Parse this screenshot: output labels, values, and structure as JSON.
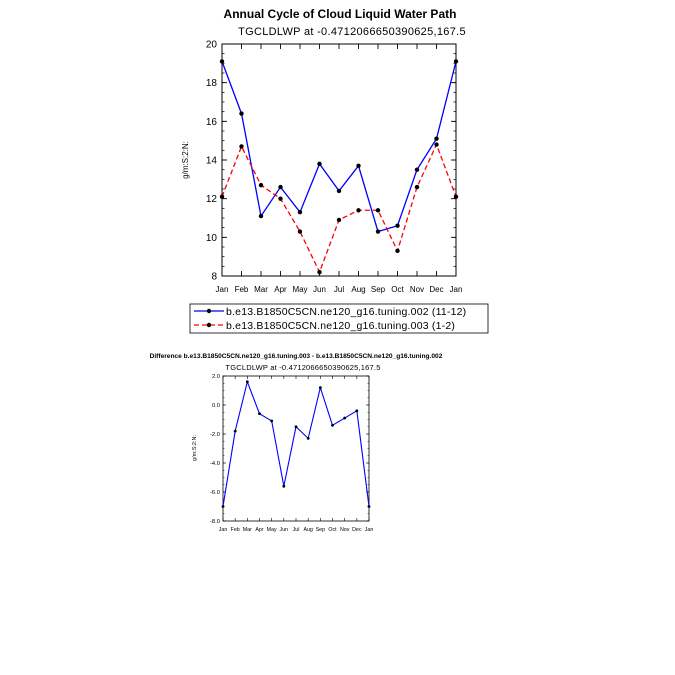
{
  "chart_data": [
    {
      "type": "line",
      "title": "Annual Cycle of Cloud Liquid Water Path",
      "subtitle": "TGCLDLWP  at  -0.4712066650390625,167.5",
      "xlabel": "",
      "ylabel": "g/m:S:2:N:",
      "categories": [
        "Jan",
        "Feb",
        "Mar",
        "Apr",
        "May",
        "Jun",
        "Jul",
        "Aug",
        "Sep",
        "Oct",
        "Nov",
        "Dec",
        "Jan"
      ],
      "ylim": [
        8,
        20
      ],
      "yticks": [
        "8",
        "10",
        "12",
        "14",
        "16",
        "18",
        "20"
      ],
      "series": [
        {
          "name": "b.e13.B1850C5CN.ne120_g16.tuning.002 (11-12)",
          "color": "#0000ff",
          "dash": "solid",
          "values": [
            19.1,
            16.4,
            11.1,
            12.6,
            11.3,
            13.8,
            12.4,
            13.7,
            10.3,
            10.6,
            13.5,
            15.1,
            19.1
          ]
        },
        {
          "name": "b.e13.B1850C5CN.ne120_g16.tuning.003 (1-2)",
          "color": "#ff0000",
          "dash": "dashed",
          "values": [
            12.1,
            14.7,
            12.7,
            12.0,
            10.3,
            8.2,
            10.9,
            11.4,
            11.4,
            9.3,
            12.6,
            14.8,
            12.1
          ]
        }
      ],
      "legend": "below",
      "grid": false
    },
    {
      "type": "line",
      "title": "Difference b.e13.B1850C5CN.ne120_g16.tuning.003 - b.e13.B1850C5CN.ne120_g16.tuning.002",
      "subtitle": "TGCLDLWP  at  -0.4712066650390625,167.5",
      "xlabel": "",
      "ylabel": "g/m:S:2:N:",
      "categories": [
        "Jan",
        "Feb",
        "Mar",
        "Apr",
        "May",
        "Jun",
        "Jul",
        "Aug",
        "Sep",
        "Oct",
        "Nov",
        "Dec",
        "Jan"
      ],
      "ylim": [
        -8,
        2
      ],
      "yticks": [
        "-8.0",
        "-6.0",
        "-4.0",
        "-2.0",
        "0.0",
        "2.0"
      ],
      "series": [
        {
          "color": "#0000ff",
          "dash": "solid",
          "values": [
            -7.0,
            -1.8,
            1.6,
            -0.6,
            -1.1,
            -5.6,
            -1.5,
            -2.3,
            1.2,
            -1.4,
            -0.9,
            -0.4,
            -7.0
          ]
        }
      ],
      "grid": false
    }
  ]
}
